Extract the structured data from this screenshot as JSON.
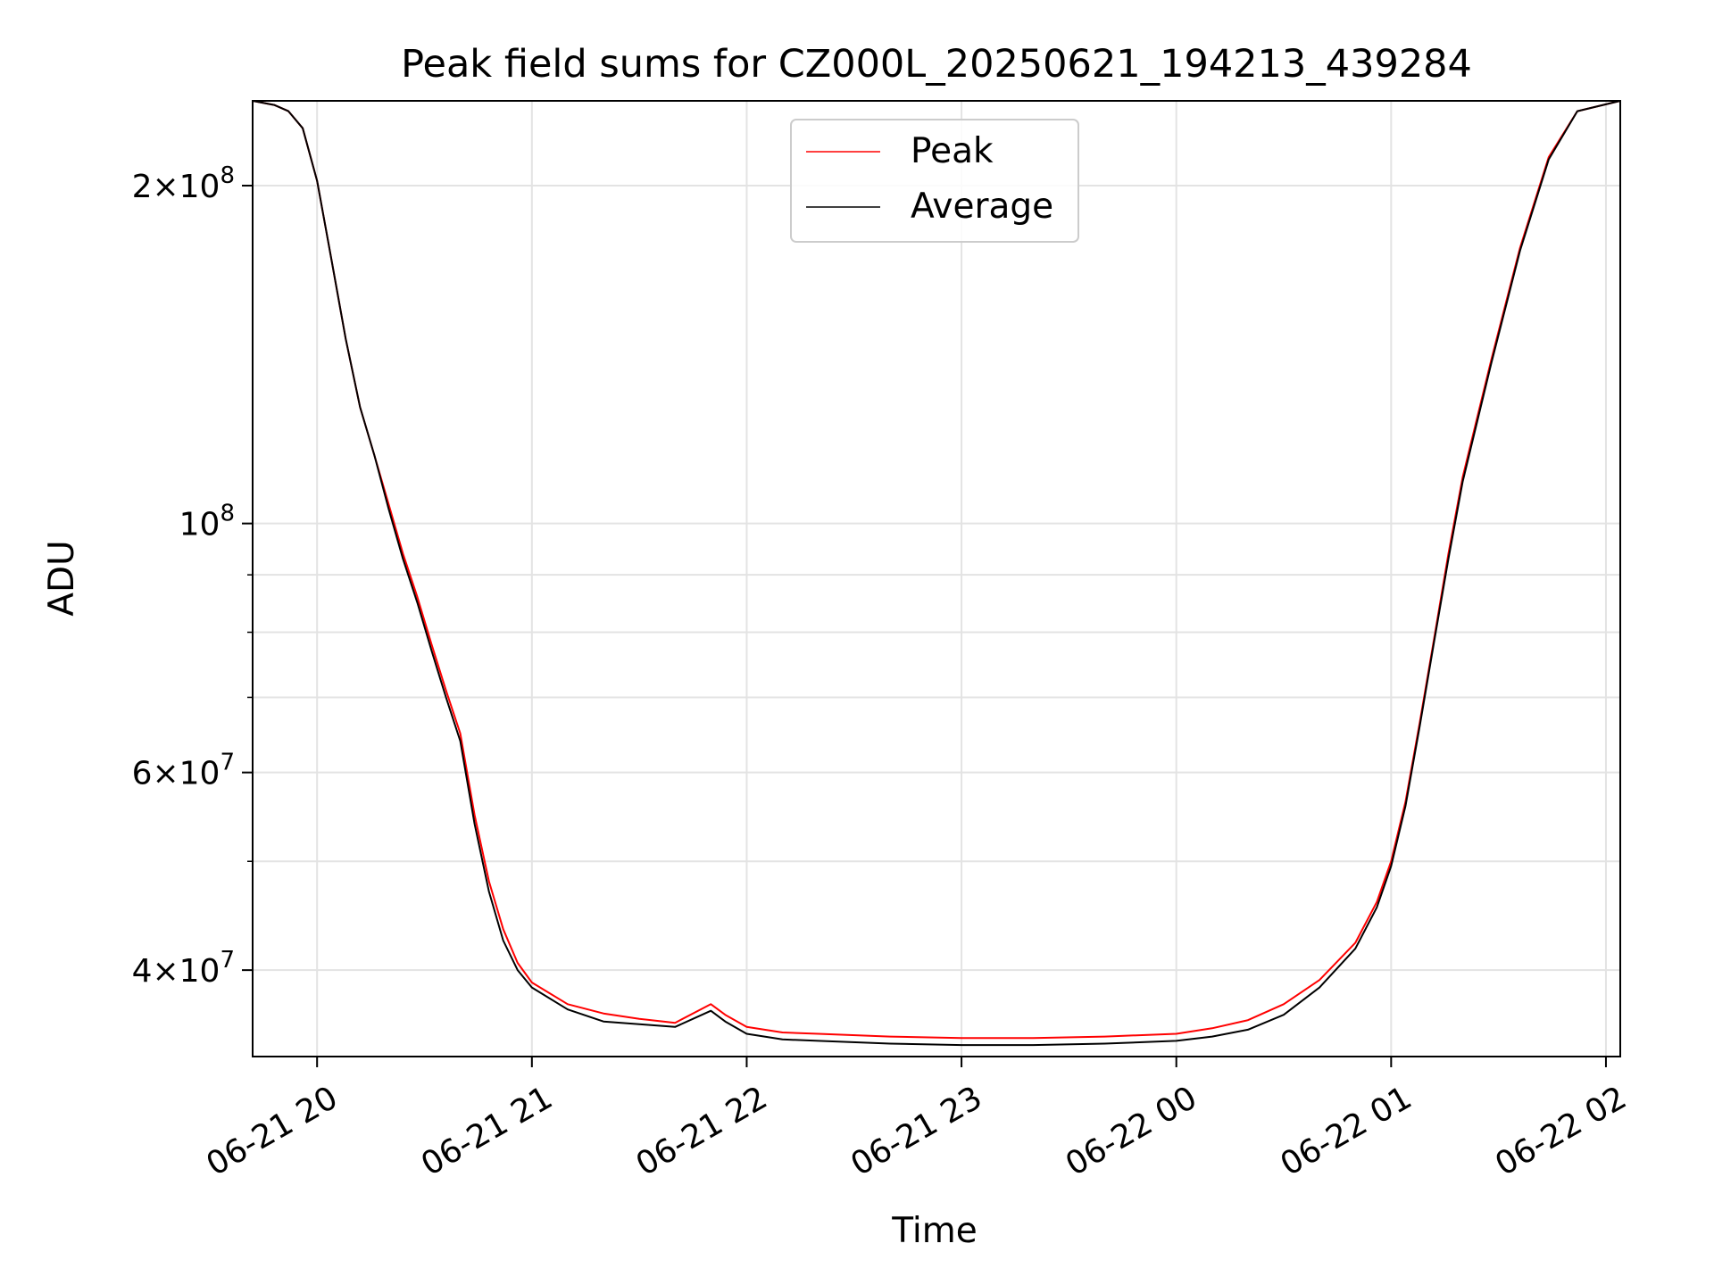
{
  "chart_data": {
    "type": "line",
    "title": "Peak field sums for CZ000L_20250621_194213_439284",
    "xlabel": "Time",
    "ylabel": "ADU",
    "y_scale": "log",
    "ylim": [
      33500000,
      238000000
    ],
    "xlim": [
      "2025-06-21 19:42",
      "2025-06-22 02:04"
    ],
    "x_ticks": [
      {
        "t": "2025-06-21 20:00",
        "label": "06-21 20"
      },
      {
        "t": "2025-06-21 21:00",
        "label": "06-21 21"
      },
      {
        "t": "2025-06-21 22:00",
        "label": "06-21 22"
      },
      {
        "t": "2025-06-21 23:00",
        "label": "06-21 23"
      },
      {
        "t": "2025-06-22 00:00",
        "label": "06-22 00"
      },
      {
        "t": "2025-06-22 01:00",
        "label": "06-22 01"
      },
      {
        "t": "2025-06-22 02:00",
        "label": "06-22 02"
      }
    ],
    "y_major_ticks": [
      {
        "v": 40000000,
        "mant": "4",
        "exp": "7"
      },
      {
        "v": 60000000,
        "mant": "6",
        "exp": "7"
      },
      {
        "v": 100000000,
        "mant": "",
        "exp": "8"
      },
      {
        "v": 200000000,
        "mant": "2",
        "exp": "8"
      }
    ],
    "y_minor_ticks": [
      50000000,
      70000000,
      80000000,
      90000000
    ],
    "grid": true,
    "legend": {
      "position": "top-center"
    },
    "series": [
      {
        "name": "Peak",
        "color": "#ff0000",
        "x": [
          "2025-06-21 19:42",
          "2025-06-21 19:48",
          "2025-06-21 19:52",
          "2025-06-21 19:56",
          "2025-06-21 20:00",
          "2025-06-21 20:04",
          "2025-06-21 20:08",
          "2025-06-21 20:12",
          "2025-06-21 20:16",
          "2025-06-21 20:20",
          "2025-06-21 20:24",
          "2025-06-21 20:28",
          "2025-06-21 20:32",
          "2025-06-21 20:36",
          "2025-06-21 20:40",
          "2025-06-21 20:44",
          "2025-06-21 20:48",
          "2025-06-21 20:52",
          "2025-06-21 20:56",
          "2025-06-21 21:00",
          "2025-06-21 21:10",
          "2025-06-21 21:20",
          "2025-06-21 21:30",
          "2025-06-21 21:40",
          "2025-06-21 21:50",
          "2025-06-21 21:54",
          "2025-06-21 22:00",
          "2025-06-21 22:10",
          "2025-06-21 22:20",
          "2025-06-21 22:40",
          "2025-06-21 23:00",
          "2025-06-21 23:20",
          "2025-06-21 23:40",
          "2025-06-22 00:00",
          "2025-06-22 00:10",
          "2025-06-22 00:20",
          "2025-06-22 00:30",
          "2025-06-22 00:40",
          "2025-06-22 00:50",
          "2025-06-22 00:56",
          "2025-06-22 01:00",
          "2025-06-22 01:04",
          "2025-06-22 01:08",
          "2025-06-22 01:12",
          "2025-06-22 01:16",
          "2025-06-22 01:20",
          "2025-06-22 01:28",
          "2025-06-22 01:36",
          "2025-06-22 01:44",
          "2025-06-22 01:52",
          "2025-06-22 02:04"
        ],
        "values": [
          238000000,
          236000000,
          233000000,
          225000000,
          202000000,
          172000000,
          146000000,
          127000000,
          115000000,
          104000000,
          94000000,
          86000000,
          78000000,
          71000000,
          65000000,
          55000000,
          48000000,
          43500000,
          40600000,
          39000000,
          37300000,
          36600000,
          36200000,
          35900000,
          37300000,
          36500000,
          35600000,
          35200000,
          35100000,
          34900000,
          34800000,
          34800000,
          34900000,
          35100000,
          35500000,
          36100000,
          37300000,
          39200000,
          42300000,
          46000000,
          50000000,
          56500000,
          66500000,
          79000000,
          94000000,
          110000000,
          140000000,
          176000000,
          212000000,
          233000000,
          238000000
        ]
      },
      {
        "name": "Average",
        "color": "#000000",
        "x": [
          "2025-06-21 19:42",
          "2025-06-21 19:48",
          "2025-06-21 19:52",
          "2025-06-21 19:56",
          "2025-06-21 20:00",
          "2025-06-21 20:04",
          "2025-06-21 20:08",
          "2025-06-21 20:12",
          "2025-06-21 20:16",
          "2025-06-21 20:20",
          "2025-06-21 20:24",
          "2025-06-21 20:28",
          "2025-06-21 20:32",
          "2025-06-21 20:36",
          "2025-06-21 20:40",
          "2025-06-21 20:44",
          "2025-06-21 20:48",
          "2025-06-21 20:52",
          "2025-06-21 20:56",
          "2025-06-21 21:00",
          "2025-06-21 21:10",
          "2025-06-21 21:20",
          "2025-06-21 21:30",
          "2025-06-21 21:40",
          "2025-06-21 21:50",
          "2025-06-21 21:54",
          "2025-06-21 22:00",
          "2025-06-21 22:10",
          "2025-06-21 22:20",
          "2025-06-21 22:40",
          "2025-06-21 23:00",
          "2025-06-21 23:20",
          "2025-06-21 23:40",
          "2025-06-22 00:00",
          "2025-06-22 00:10",
          "2025-06-22 00:20",
          "2025-06-22 00:30",
          "2025-06-22 00:40",
          "2025-06-22 00:50",
          "2025-06-22 00:56",
          "2025-06-22 01:00",
          "2025-06-22 01:04",
          "2025-06-22 01:08",
          "2025-06-22 01:12",
          "2025-06-22 01:16",
          "2025-06-22 01:20",
          "2025-06-22 01:28",
          "2025-06-22 01:36",
          "2025-06-22 01:44",
          "2025-06-22 01:52",
          "2025-06-22 02:04"
        ],
        "values": [
          238000000,
          236000000,
          233000000,
          225000000,
          202000000,
          172000000,
          146000000,
          127000000,
          115000000,
          103000000,
          93000000,
          85000000,
          77000000,
          70000000,
          64000000,
          54000000,
          47000000,
          42500000,
          40000000,
          38600000,
          36900000,
          36000000,
          35800000,
          35600000,
          36800000,
          36000000,
          35100000,
          34700000,
          34600000,
          34400000,
          34300000,
          34300000,
          34400000,
          34600000,
          34900000,
          35400000,
          36500000,
          38600000,
          41800000,
          45500000,
          49500000,
          56000000,
          66000000,
          78500000,
          93000000,
          109000000,
          139000000,
          175000000,
          211000000,
          233000000,
          238000000
        ]
      }
    ]
  }
}
